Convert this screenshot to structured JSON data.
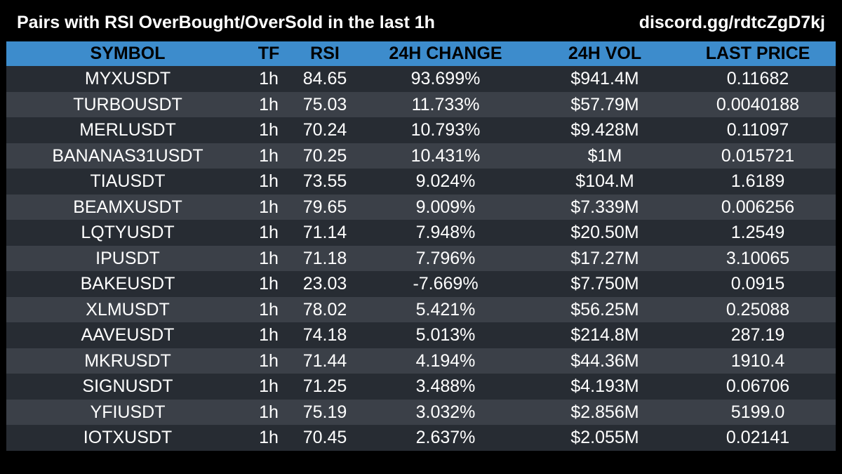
{
  "header": {
    "title": "Pairs with RSI OverBought/OverSold in the last 1h",
    "link": "discord.gg/rdtcZgD7kj"
  },
  "colors": {
    "header_row": "#3d8ccc",
    "row_odd": "#272c33",
    "row_even": "#3b4048",
    "background": "#000000"
  },
  "table": {
    "columns": [
      "SYMBOL",
      "TF",
      "RSI",
      "24H CHANGE",
      "24H VOL",
      "LAST PRICE"
    ],
    "rows": [
      {
        "symbol": "MYXUSDT",
        "tf": "1h",
        "rsi": "84.65",
        "change": "93.699%",
        "vol": "$941.4M",
        "price": "0.11682"
      },
      {
        "symbol": "TURBOUSDT",
        "tf": "1h",
        "rsi": "75.03",
        "change": "11.733%",
        "vol": "$57.79M",
        "price": "0.0040188"
      },
      {
        "symbol": "MERLUSDT",
        "tf": "1h",
        "rsi": "70.24",
        "change": "10.793%",
        "vol": "$9.428M",
        "price": "0.11097"
      },
      {
        "symbol": "BANANAS31USDT",
        "tf": "1h",
        "rsi": "70.25",
        "change": "10.431%",
        "vol": "$1M",
        "price": "0.015721"
      },
      {
        "symbol": "TIAUSDT",
        "tf": "1h",
        "rsi": "73.55",
        "change": "9.024%",
        "vol": "$104.M",
        "price": "1.6189"
      },
      {
        "symbol": "BEAMXUSDT",
        "tf": "1h",
        "rsi": "79.65",
        "change": "9.009%",
        "vol": "$7.339M",
        "price": "0.006256"
      },
      {
        "symbol": "LQTYUSDT",
        "tf": "1h",
        "rsi": "71.14",
        "change": "7.948%",
        "vol": "$20.50M",
        "price": "1.2549"
      },
      {
        "symbol": "IPUSDT",
        "tf": "1h",
        "rsi": "71.18",
        "change": "7.796%",
        "vol": "$17.27M",
        "price": "3.10065"
      },
      {
        "symbol": "BAKEUSDT",
        "tf": "1h",
        "rsi": "23.03",
        "change": "-7.669%",
        "vol": "$7.750M",
        "price": "0.0915"
      },
      {
        "symbol": "XLMUSDT",
        "tf": "1h",
        "rsi": "78.02",
        "change": "5.421%",
        "vol": "$56.25M",
        "price": "0.25088"
      },
      {
        "symbol": "AAVEUSDT",
        "tf": "1h",
        "rsi": "74.18",
        "change": "5.013%",
        "vol": "$214.8M",
        "price": "287.19"
      },
      {
        "symbol": "MKRUSDT",
        "tf": "1h",
        "rsi": "71.44",
        "change": "4.194%",
        "vol": "$44.36M",
        "price": "1910.4"
      },
      {
        "symbol": "SIGNUSDT",
        "tf": "1h",
        "rsi": "71.25",
        "change": "3.488%",
        "vol": "$4.193M",
        "price": "0.06706"
      },
      {
        "symbol": "YFIUSDT",
        "tf": "1h",
        "rsi": "75.19",
        "change": "3.032%",
        "vol": "$2.856M",
        "price": "5199.0"
      },
      {
        "symbol": "IOTXUSDT",
        "tf": "1h",
        "rsi": "70.45",
        "change": "2.637%",
        "vol": "$2.055M",
        "price": "0.02141"
      }
    ]
  }
}
